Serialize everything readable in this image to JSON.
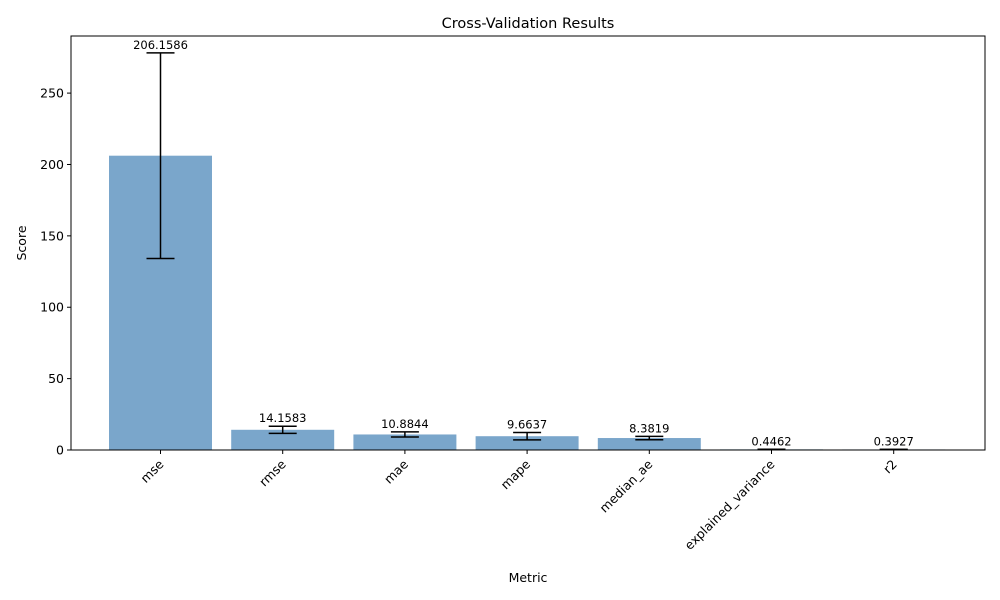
{
  "chart_data": {
    "type": "bar",
    "title": "Cross-Validation Results",
    "xlabel": "Metric",
    "ylabel": "Score",
    "categories": [
      "mse",
      "rmse",
      "mae",
      "mape",
      "median_ae",
      "explained_variance",
      "r2"
    ],
    "values": [
      206.1586,
      14.1583,
      10.8844,
      9.6637,
      8.3819,
      0.4462,
      0.3927
    ],
    "value_labels": [
      "206.1586",
      "14.1583",
      "10.8844",
      "9.6637",
      "8.3819",
      "0.4462",
      "0.3927"
    ],
    "error": [
      72.0,
      2.5,
      1.8,
      2.6,
      1.2,
      0.05,
      0.05
    ],
    "ylim": [
      0,
      290
    ],
    "yticks": [
      0,
      50,
      100,
      150,
      200,
      250
    ],
    "bar_color": "#7aa6cb",
    "error_color": "#000000",
    "grid": false
  }
}
